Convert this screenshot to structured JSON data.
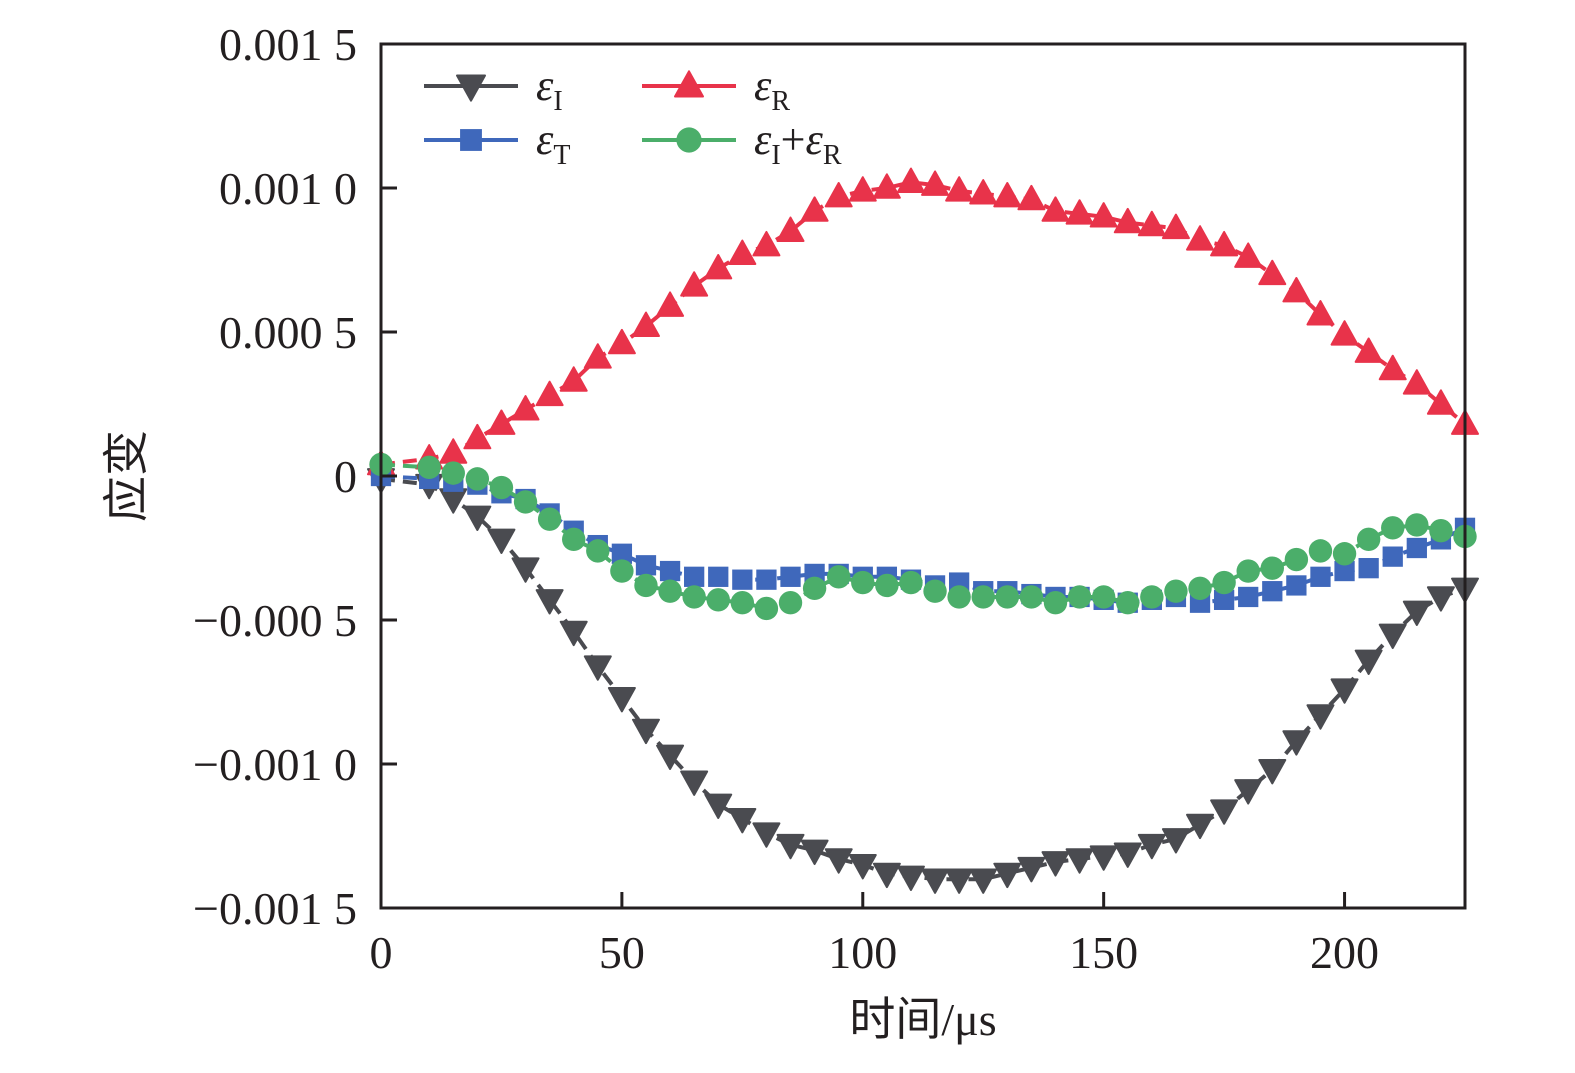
{
  "chart_data": {
    "type": "line",
    "title": "",
    "xlabel": "时间/μs",
    "ylabel": "应变",
    "xlim": [
      0,
      225
    ],
    "ylim": [
      -0.0015,
      0.0015
    ],
    "grid": false,
    "legend_position": "top-left",
    "x_ticks": [
      0,
      50,
      100,
      150,
      200
    ],
    "x_tick_labels": [
      "0",
      "50",
      "100",
      "150",
      "200"
    ],
    "y_ticks": [
      0.0015,
      0.001,
      0.0005,
      0,
      -0.0005,
      -0.001,
      -0.0015
    ],
    "y_tick_labels": [
      "0.001 5",
      "0.001 0",
      "0.000 5",
      "0",
      "−0.000 5",
      "−0.001 0",
      "−0.001 5"
    ],
    "x": [
      0,
      10,
      15,
      20,
      25,
      30,
      35,
      40,
      45,
      50,
      55,
      60,
      65,
      70,
      75,
      80,
      85,
      90,
      95,
      100,
      105,
      110,
      115,
      120,
      125,
      130,
      135,
      140,
      145,
      150,
      155,
      160,
      165,
      170,
      175,
      180,
      185,
      190,
      195,
      200,
      205,
      210,
      215,
      220,
      225
    ],
    "series": [
      {
        "name": "εI",
        "label_main": "ε",
        "label_sub": "I",
        "color": "#4a4b50",
        "marker": "triangle-down",
        "values": [
          -1e-05,
          -3e-05,
          -8e-05,
          -0.00014,
          -0.00022,
          -0.00032,
          -0.00043,
          -0.00054,
          -0.00066,
          -0.00077,
          -0.00088,
          -0.00097,
          -0.00106,
          -0.00114,
          -0.00119,
          -0.00124,
          -0.00128,
          -0.0013,
          -0.00133,
          -0.00135,
          -0.00138,
          -0.00139,
          -0.0014,
          -0.0014,
          -0.0014,
          -0.00138,
          -0.00136,
          -0.00134,
          -0.00133,
          -0.00132,
          -0.00131,
          -0.00128,
          -0.00126,
          -0.00121,
          -0.00116,
          -0.00109,
          -0.00102,
          -0.00092,
          -0.00083,
          -0.00074,
          -0.00064,
          -0.00055,
          -0.00047,
          -0.00042,
          -0.00039
        ]
      },
      {
        "name": "εR",
        "label_main": "ε",
        "label_sub": "R",
        "color": "#e8334a",
        "marker": "triangle-up",
        "values": [
          4e-05,
          6e-05,
          8e-05,
          0.00013,
          0.00018,
          0.00023,
          0.00028,
          0.00033,
          0.00041,
          0.00046,
          0.00052,
          0.00059,
          0.00066,
          0.00072,
          0.00077,
          0.0008,
          0.00085,
          0.00092,
          0.00097,
          0.00099,
          0.001,
          0.00102,
          0.00101,
          0.00099,
          0.00098,
          0.00097,
          0.00096,
          0.00092,
          0.00091,
          0.0009,
          0.00088,
          0.00087,
          0.00086,
          0.00082,
          0.0008,
          0.00076,
          0.0007,
          0.00064,
          0.00056,
          0.00049,
          0.00043,
          0.00037,
          0.00032,
          0.00025,
          0.00018
        ]
      },
      {
        "name": "εT",
        "label_main": "ε",
        "label_sub": "T",
        "color": "#3f68bb",
        "marker": "square",
        "values": [
          0.0,
          -1e-05,
          -2e-05,
          -3e-05,
          -6e-05,
          -8e-05,
          -0.00013,
          -0.00019,
          -0.00024,
          -0.00027,
          -0.00031,
          -0.00033,
          -0.00035,
          -0.00035,
          -0.00036,
          -0.00036,
          -0.00035,
          -0.00034,
          -0.00034,
          -0.00035,
          -0.00035,
          -0.00036,
          -0.00038,
          -0.00037,
          -0.0004,
          -0.0004,
          -0.00041,
          -0.00042,
          -0.00042,
          -0.00043,
          -0.00044,
          -0.00043,
          -0.00042,
          -0.00044,
          -0.00043,
          -0.00042,
          -0.0004,
          -0.00038,
          -0.00035,
          -0.00033,
          -0.00032,
          -0.00028,
          -0.00025,
          -0.00022,
          -0.00018
        ]
      },
      {
        "name": "εI+εR",
        "label_main": "ε",
        "label_sub": "I",
        "label_plus": "+",
        "label_main2": "ε",
        "label_sub2": "R",
        "color": "#4bae6a",
        "marker": "circle",
        "values": [
          4e-05,
          3e-05,
          1e-05,
          -1e-05,
          -4e-05,
          -9e-05,
          -0.00015,
          -0.00022,
          -0.00026,
          -0.00033,
          -0.00038,
          -0.0004,
          -0.00042,
          -0.00043,
          -0.00044,
          -0.00046,
          -0.00044,
          -0.00039,
          -0.00035,
          -0.00037,
          -0.00038,
          -0.00037,
          -0.0004,
          -0.00042,
          -0.00042,
          -0.00042,
          -0.00042,
          -0.00044,
          -0.00042,
          -0.00042,
          -0.00044,
          -0.00042,
          -0.0004,
          -0.00039,
          -0.00037,
          -0.00033,
          -0.00032,
          -0.00029,
          -0.00026,
          -0.00027,
          -0.00022,
          -0.00018,
          -0.00017,
          -0.00019,
          -0.00021
        ]
      }
    ]
  }
}
